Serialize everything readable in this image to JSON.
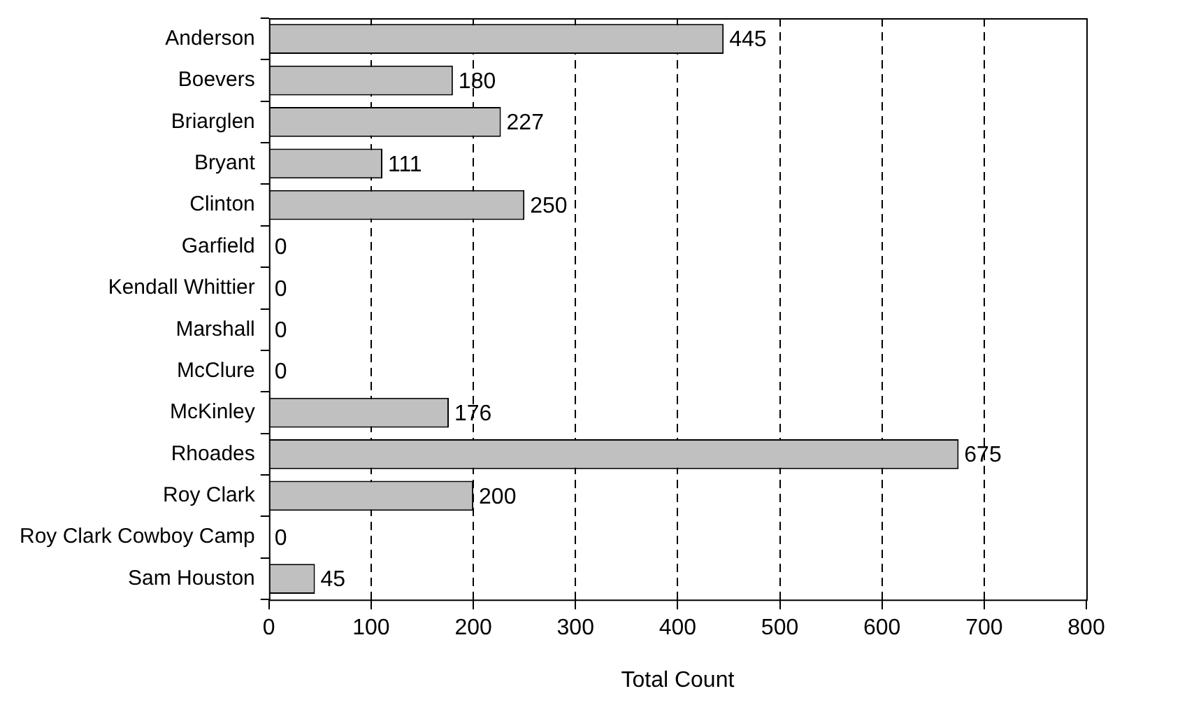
{
  "chart_data": {
    "type": "bar",
    "orientation": "horizontal",
    "xlabel": "Total Count",
    "categories": [
      "Anderson",
      "Boevers",
      "Briarglen",
      "Bryant",
      "Clinton",
      "Garfield",
      "Kendall Whittier",
      "Marshall",
      "McClure",
      "McKinley",
      "Rhoades",
      "Roy Clark",
      "Roy Clark Cowboy Camp",
      "Sam Houston"
    ],
    "values": [
      445,
      180,
      227,
      111,
      250,
      0,
      0,
      0,
      0,
      176,
      675,
      200,
      0,
      45
    ],
    "color": "#c0c0c0",
    "xlim": [
      0,
      800
    ],
    "xticks": [
      0,
      100,
      200,
      300,
      400,
      500,
      600,
      700,
      800
    ],
    "grid": "x",
    "legend": false,
    "data_labels": true
  }
}
